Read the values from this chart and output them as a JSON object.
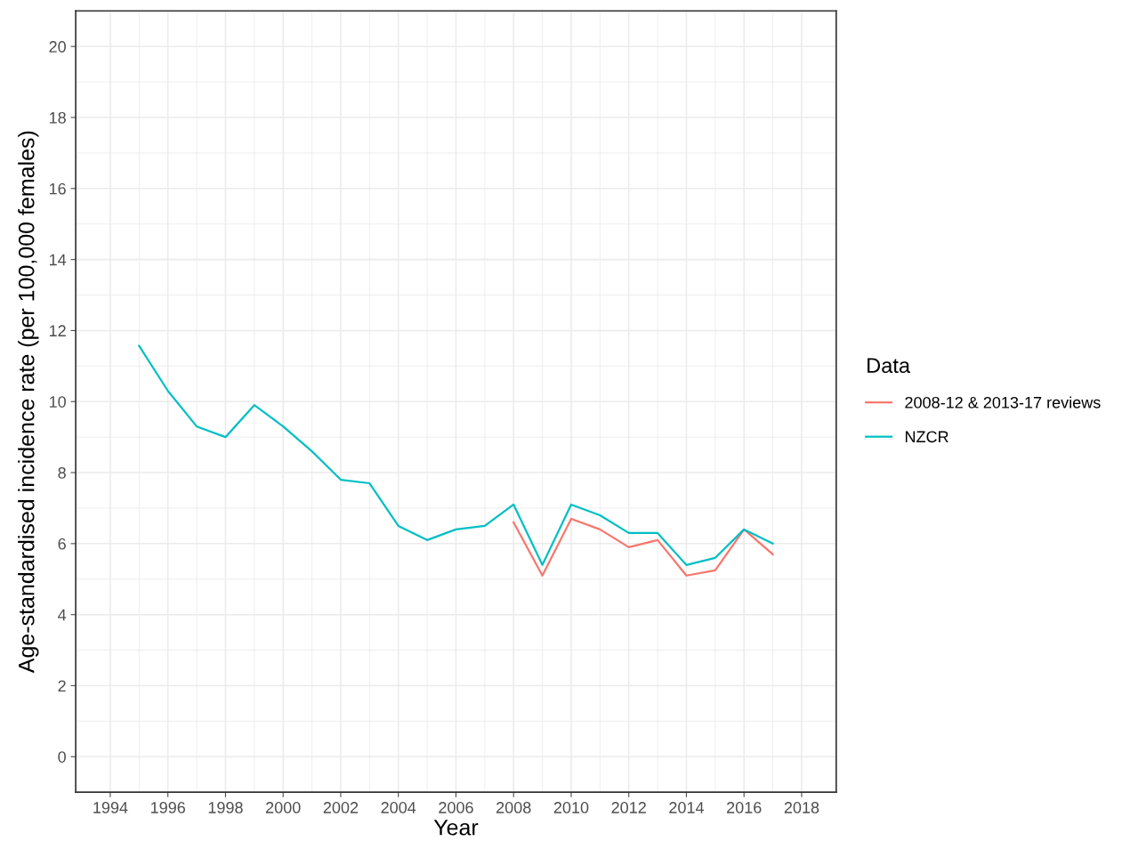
{
  "chart_data": {
    "type": "line",
    "xlabel": "Year",
    "ylabel": "Age-standardised incidence rate (per 100,000 females)",
    "legend_title": "Data",
    "x": [
      1995,
      1996,
      1997,
      1998,
      1999,
      2000,
      2001,
      2002,
      2003,
      2004,
      2005,
      2006,
      2007,
      2008,
      2009,
      2010,
      2011,
      2012,
      2013,
      2014,
      2015,
      2016,
      2017
    ],
    "series": [
      {
        "name": "2008-12 & 2013-17 reviews",
        "color": "#f8766d",
        "x": [
          2008,
          2009,
          2010,
          2011,
          2012,
          2013,
          2014,
          2015,
          2016,
          2017
        ],
        "values": [
          6.6,
          5.1,
          6.7,
          6.4,
          5.9,
          6.1,
          5.1,
          5.25,
          6.4,
          5.7
        ]
      },
      {
        "name": "NZCR",
        "color": "#00bfc4",
        "values": [
          11.57,
          10.3,
          9.3,
          9.0,
          9.9,
          9.3,
          8.6,
          7.8,
          7.7,
          6.5,
          6.1,
          6.4,
          6.5,
          7.1,
          5.4,
          7.1,
          6.8,
          6.3,
          6.3,
          5.4,
          5.6,
          6.4,
          6.0
        ]
      }
    ],
    "xlim": [
      1992.8,
      2019.2
    ],
    "xticks": [
      1994,
      1996,
      1998,
      2000,
      2002,
      2004,
      2006,
      2008,
      2010,
      2012,
      2014,
      2016,
      2018
    ],
    "ylim": [
      -1,
      21
    ],
    "yticks": [
      0,
      2,
      4,
      6,
      8,
      10,
      12,
      14,
      16,
      18,
      20
    ],
    "grid": true,
    "legend": "right",
    "marker": "none",
    "line_style": "solid"
  }
}
